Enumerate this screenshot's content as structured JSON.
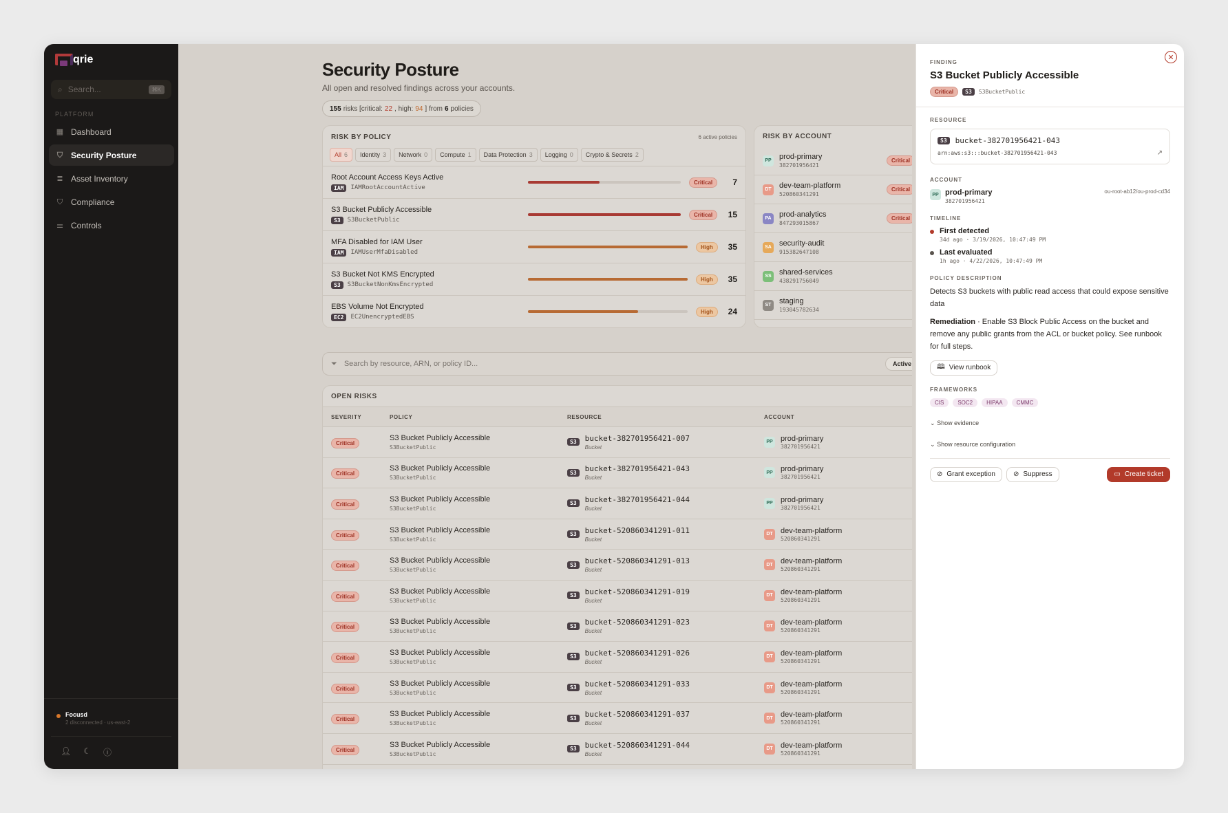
{
  "app": {
    "name": "qrie",
    "search_placeholder": "Search...",
    "search_kbd": "⌘K"
  },
  "sidebar": {
    "section": "PLATFORM",
    "items": [
      {
        "label": "Dashboard",
        "icon": "grid-icon"
      },
      {
        "label": "Security Posture",
        "icon": "shield-icon"
      },
      {
        "label": "Asset Inventory",
        "icon": "database-icon"
      },
      {
        "label": "Compliance",
        "icon": "shield-check-icon"
      },
      {
        "label": "Controls",
        "icon": "sliders-icon"
      }
    ],
    "status_title": "Focusd",
    "status_detail": "2 disconnected · us-east-2"
  },
  "page": {
    "title": "Security Posture",
    "subtitle": "All open and resolved findings across your accounts.",
    "summary": {
      "total": "155",
      "t_risks": "risks [critical: ",
      "critical": "22",
      "t_high": ", high: ",
      "high": "94",
      "t_from": "] from ",
      "policies": "6",
      "t_pol": " policies"
    }
  },
  "risk_by_policy": {
    "title": "RISK BY POLICY",
    "active": "6 active policies",
    "filters": [
      {
        "label": "All",
        "count": "6"
      },
      {
        "label": "Identity",
        "count": "3"
      },
      {
        "label": "Network",
        "count": "0"
      },
      {
        "label": "Compute",
        "count": "1"
      },
      {
        "label": "Data Protection",
        "count": "3"
      },
      {
        "label": "Logging",
        "count": "0"
      },
      {
        "label": "Crypto & Secrets",
        "count": "2"
      }
    ],
    "rows": [
      {
        "name": "Root Account Access Keys Active",
        "tag": "IAM",
        "id": "IAMRootAccountActive",
        "severity": "Critical",
        "count": "7",
        "fill": 0.47
      },
      {
        "name": "S3 Bucket Publicly Accessible",
        "tag": "S3",
        "id": "S3BucketPublic",
        "severity": "Critical",
        "count": "15",
        "fill": 1.0
      },
      {
        "name": "MFA Disabled for IAM User",
        "tag": "IAM",
        "id": "IAMUserMfaDisabled",
        "severity": "High",
        "count": "35",
        "fill": 1.0
      },
      {
        "name": "S3 Bucket Not KMS Encrypted",
        "tag": "S3",
        "id": "S3BucketNonKmsEncrypted",
        "severity": "High",
        "count": "35",
        "fill": 1.0
      },
      {
        "name": "EBS Volume Not Encrypted",
        "tag": "EC2",
        "id": "EC2UnencryptedEBS",
        "severity": "High",
        "count": "24",
        "fill": 0.69
      }
    ]
  },
  "risk_by_account": {
    "title": "RISK BY ACCOUNT",
    "rows": [
      {
        "abbr": "PP",
        "name": "prod-primary",
        "id": "382701956421",
        "badge": "Critical",
        "color": "#cfe6de",
        "fg": "#2d6a55"
      },
      {
        "abbr": "DT",
        "name": "dev-team-platform",
        "id": "520860341291",
        "badge": "Critical",
        "color": "#e89a88",
        "fg": "#fff"
      },
      {
        "abbr": "PA",
        "name": "prod-analytics",
        "id": "847293015867",
        "badge": "Critical",
        "color": "#8a86c4",
        "fg": "#fff"
      },
      {
        "abbr": "SA",
        "name": "security-audit",
        "id": "915382647108",
        "badge": "",
        "color": "#e6a95a",
        "fg": "#fff"
      },
      {
        "abbr": "SS",
        "name": "shared-services",
        "id": "438291756049",
        "badge": "",
        "color": "#7cbf79",
        "fg": "#fff"
      },
      {
        "abbr": "ST",
        "name": "staging",
        "id": "193045782634",
        "badge": "",
        "color": "#8f8a84",
        "fg": "#fff"
      }
    ]
  },
  "filter": {
    "placeholder": "Search by resource, ARN, or policy ID...",
    "active_label": "Active"
  },
  "open_risks": {
    "title": "OPEN RISKS",
    "headers": [
      "SEVERITY",
      "POLICY",
      "RESOURCE",
      "ACCOUNT"
    ],
    "rows": [
      {
        "sev": "Critical",
        "policy": "S3 Bucket Publicly Accessible",
        "pid": "S3BucketPublic",
        "res": "bucket-382701956421-007",
        "rtype": "Bucket",
        "abbr": "PP",
        "acct": "prod-primary",
        "aid": "382701956421"
      },
      {
        "sev": "Critical",
        "policy": "S3 Bucket Publicly Accessible",
        "pid": "S3BucketPublic",
        "res": "bucket-382701956421-043",
        "rtype": "Bucket",
        "abbr": "PP",
        "acct": "prod-primary",
        "aid": "382701956421"
      },
      {
        "sev": "Critical",
        "policy": "S3 Bucket Publicly Accessible",
        "pid": "S3BucketPublic",
        "res": "bucket-382701956421-044",
        "rtype": "Bucket",
        "abbr": "PP",
        "acct": "prod-primary",
        "aid": "382701956421"
      },
      {
        "sev": "Critical",
        "policy": "S3 Bucket Publicly Accessible",
        "pid": "S3BucketPublic",
        "res": "bucket-520860341291-011",
        "rtype": "Bucket",
        "abbr": "DT",
        "acct": "dev-team-platform",
        "aid": "520860341291"
      },
      {
        "sev": "Critical",
        "policy": "S3 Bucket Publicly Accessible",
        "pid": "S3BucketPublic",
        "res": "bucket-520860341291-013",
        "rtype": "Bucket",
        "abbr": "DT",
        "acct": "dev-team-platform",
        "aid": "520860341291"
      },
      {
        "sev": "Critical",
        "policy": "S3 Bucket Publicly Accessible",
        "pid": "S3BucketPublic",
        "res": "bucket-520860341291-019",
        "rtype": "Bucket",
        "abbr": "DT",
        "acct": "dev-team-platform",
        "aid": "520860341291"
      },
      {
        "sev": "Critical",
        "policy": "S3 Bucket Publicly Accessible",
        "pid": "S3BucketPublic",
        "res": "bucket-520860341291-023",
        "rtype": "Bucket",
        "abbr": "DT",
        "acct": "dev-team-platform",
        "aid": "520860341291"
      },
      {
        "sev": "Critical",
        "policy": "S3 Bucket Publicly Accessible",
        "pid": "S3BucketPublic",
        "res": "bucket-520860341291-026",
        "rtype": "Bucket",
        "abbr": "DT",
        "acct": "dev-team-platform",
        "aid": "520860341291"
      },
      {
        "sev": "Critical",
        "policy": "S3 Bucket Publicly Accessible",
        "pid": "S3BucketPublic",
        "res": "bucket-520860341291-033",
        "rtype": "Bucket",
        "abbr": "DT",
        "acct": "dev-team-platform",
        "aid": "520860341291"
      },
      {
        "sev": "Critical",
        "policy": "S3 Bucket Publicly Accessible",
        "pid": "S3BucketPublic",
        "res": "bucket-520860341291-037",
        "rtype": "Bucket",
        "abbr": "DT",
        "acct": "dev-team-platform",
        "aid": "520860341291"
      },
      {
        "sev": "Critical",
        "policy": "S3 Bucket Publicly Accessible",
        "pid": "S3BucketPublic",
        "res": "bucket-520860341291-044",
        "rtype": "Bucket",
        "abbr": "DT",
        "acct": "dev-team-platform",
        "aid": "520860341291"
      }
    ]
  },
  "drawer": {
    "label": "FINDING",
    "title": "S3 Bucket Publicly Accessible",
    "severity": "Critical",
    "tag": "S3",
    "policy_id": "S3BucketPublic",
    "resource_label": "RESOURCE",
    "resource_name": "bucket-382701956421-043",
    "resource_arn": "arn:aws:s3:::bucket-382701956421-043",
    "account_label": "ACCOUNT",
    "account_abbr": "PP",
    "account_name": "prod-primary",
    "account_id": "382701956421",
    "account_ou": "ou-root-ab12/ou-prod-cd34",
    "timeline_label": "TIMELINE",
    "first_label": "First detected",
    "first_time": "34d ago · 3/19/2026, 10:47:49 PM",
    "last_label": "Last evaluated",
    "last_time": "1h ago · 4/22/2026, 10:47:49 PM",
    "policy_label": "POLICY DESCRIPTION",
    "policy_desc": "Detects S3 buckets with public read access that could expose sensitive data",
    "remediation_label": "Remediation",
    "remediation": " · Enable S3 Block Public Access on the bucket and remove any public grants from the ACL or bucket policy. See runbook for full steps.",
    "runbook": "View runbook",
    "frameworks_label": "FRAMEWORKS",
    "frameworks": [
      "CIS",
      "SOC2",
      "HIPAA",
      "CMMC"
    ],
    "show_evidence": "Show evidence",
    "show_config": "Show resource configuration",
    "grant": "Grant exception",
    "suppress": "Suppress",
    "create": "Create ticket"
  },
  "colors": {
    "critical": "#b23a2a",
    "high": "#c0692e",
    "accent": "#b23a2a"
  }
}
